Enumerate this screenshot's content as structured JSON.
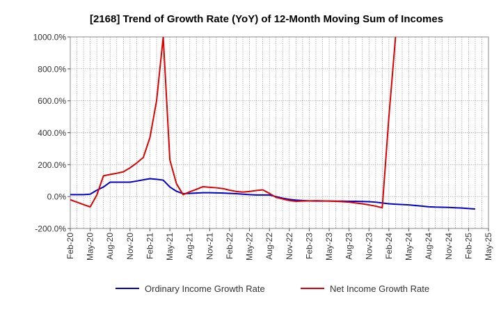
{
  "chart_data": {
    "type": "line",
    "title": "[2168]  Trend of Growth Rate (YoY) of 12-Month Moving Sum of Incomes",
    "xlabel": "",
    "ylabel": "",
    "ylim": [
      -200,
      1000
    ],
    "yticks": [
      1000,
      800,
      600,
      400,
      200,
      0,
      -200
    ],
    "ytick_labels": [
      "1000.0%",
      "800.0%",
      "600.0%",
      "400.0%",
      "200.0%",
      "0.0%",
      "-200.0%"
    ],
    "xticks": [
      "Feb-20",
      "May-20",
      "Aug-20",
      "Nov-20",
      "Feb-21",
      "May-21",
      "Aug-21",
      "Nov-21",
      "Feb-22",
      "May-22",
      "Aug-22",
      "Nov-22",
      "Feb-23",
      "May-23",
      "Aug-23",
      "Nov-23",
      "Feb-24",
      "May-24",
      "Aug-24",
      "Nov-24",
      "Feb-25",
      "May-25"
    ],
    "grid": true,
    "legend_position": "bottom",
    "x_start": "Feb-20",
    "series": [
      {
        "name": "Ordinary Income Growth Rate",
        "color": "#0000cc",
        "values": [
          12,
          12,
          12,
          15,
          40,
          60,
          90,
          90,
          90,
          90,
          97,
          105,
          112,
          108,
          103,
          60,
          33,
          18,
          20,
          22,
          24,
          24,
          23,
          22,
          20,
          18,
          15,
          12,
          10,
          10,
          10,
          0,
          -10,
          -18,
          -22,
          -25,
          -27,
          -28,
          -28,
          -28,
          -29,
          -29,
          -30,
          -30,
          -31,
          -32,
          -35,
          -40,
          -45,
          -48,
          -50,
          -52,
          -56,
          -60,
          -64,
          -66,
          -67,
          -68,
          -70,
          -72,
          -75,
          -78
        ]
      },
      {
        "name": "Net Income Growth Rate",
        "color": "#dd0000",
        "values": [
          -20,
          -35,
          -50,
          -65,
          10,
          130,
          138,
          146,
          155,
          180,
          210,
          245,
          370,
          600,
          1000,
          230,
          80,
          12,
          30,
          45,
          62,
          58,
          55,
          50,
          40,
          32,
          28,
          32,
          38,
          42,
          20,
          -5,
          -15,
          -25,
          -30,
          -28,
          -27,
          -26,
          -27,
          -28,
          -30,
          -32,
          -35,
          -40,
          -45,
          -52,
          -60,
          -70,
          500,
          1000,
          null,
          null,
          null,
          null,
          null,
          null,
          null,
          null,
          null,
          null,
          null,
          null
        ]
      }
    ]
  }
}
